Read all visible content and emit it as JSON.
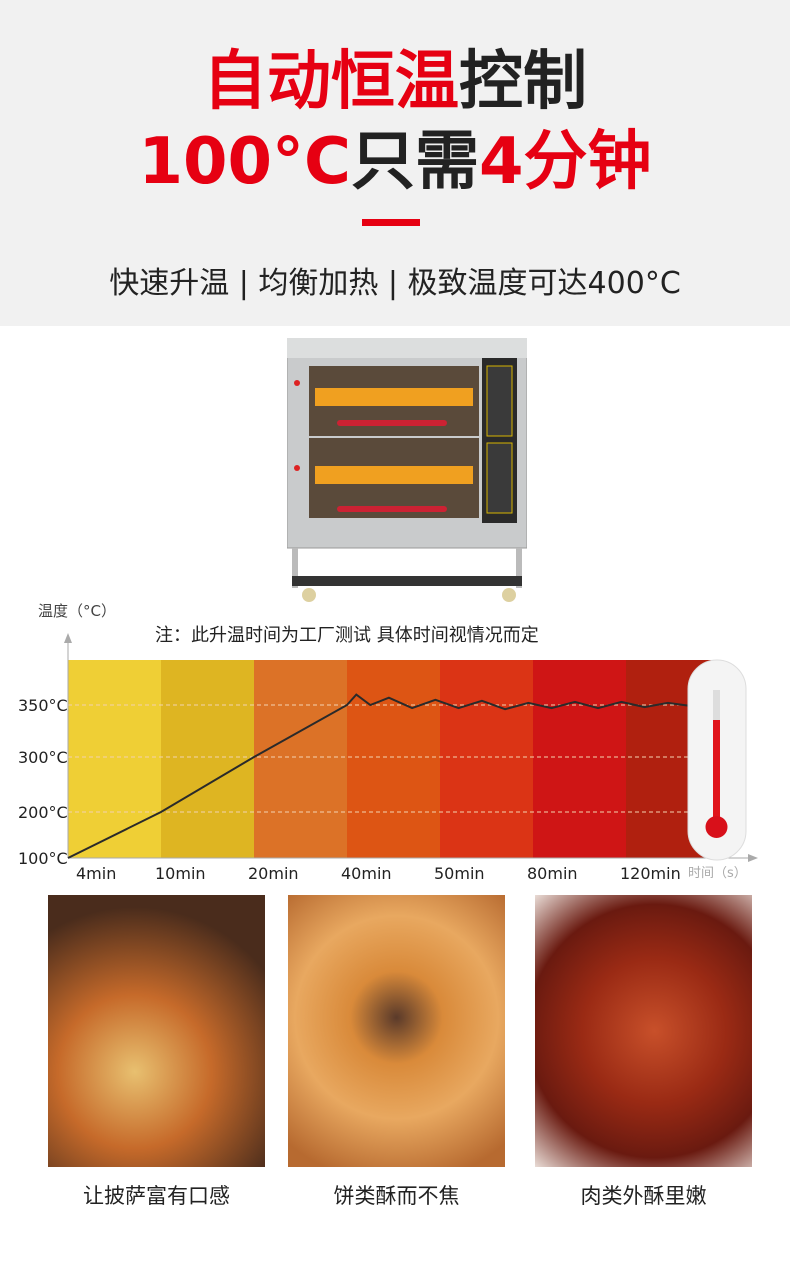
{
  "headline": {
    "line1_red": "自动恒温",
    "line1_dark": "控制",
    "line2_red_a": "100°C",
    "line2_dark": "只需",
    "line2_red_b": "4分钟"
  },
  "subtitle": "快速升温 | 均衡加热 | 极致温度可达400°C",
  "chart_data": {
    "type": "line",
    "ylabel": "温度（°C）",
    "xlabel": "时间（s）",
    "note": "注：此升温时间为工厂测试  具体时间视情况而定",
    "categories": [
      "4min",
      "10min",
      "20min",
      "40min",
      "50min",
      "80min",
      "120min"
    ],
    "y_ticks": [
      "100°C",
      "200°C",
      "300°C",
      "350°C"
    ],
    "y_tick_values": [
      100,
      200,
      300,
      350
    ],
    "band_colors": [
      "#efcf35",
      "#deb522",
      "#dc7227",
      "#dd5514",
      "#db3415",
      "#cf1515",
      "#b0200f"
    ],
    "series": [
      {
        "x": [
          0,
          1,
          2,
          3,
          3.1,
          3.25,
          3.45,
          3.7,
          3.95,
          4.2,
          4.45,
          4.7,
          4.95,
          5.2,
          5.45,
          5.7,
          5.95,
          6.2,
          6.45,
          6.7
        ],
        "y": [
          100,
          200,
          300,
          350,
          360,
          350,
          357,
          347,
          355,
          347,
          354,
          346,
          352,
          347,
          353,
          347,
          353,
          348,
          352,
          349
        ]
      }
    ],
    "grid": true
  },
  "captions": [
    "让披萨富有口感",
    "饼类酥而不焦",
    "肉类外酥里嫩"
  ]
}
